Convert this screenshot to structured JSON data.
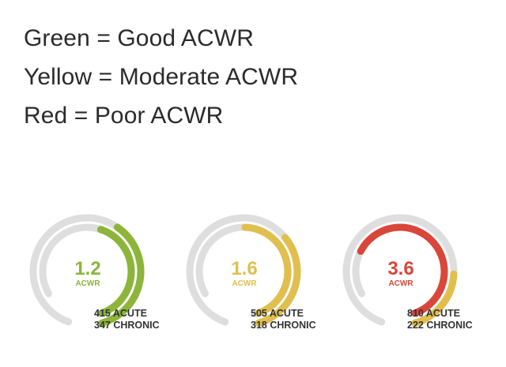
{
  "legend": {
    "lines": [
      "Green = Good ACWR",
      "Yellow = Moderate ACWR",
      "Red = Poor ACWR"
    ]
  },
  "colors": {
    "green": "#8cb53a",
    "yellow": "#e0bf4e",
    "red": "#d9463a",
    "track": "#dedede",
    "text_dark": "#333333"
  },
  "gauges": [
    {
      "value": "1.2",
      "unit": "ACWR",
      "acute": "415 ACUTE",
      "chronic": "347 CHRONIC",
      "status": "good",
      "status_color": "#8cb53a",
      "value_color": "#8cb53a",
      "acute_fraction": 0.45,
      "chronic_fraction": 0.4
    },
    {
      "value": "1.6",
      "unit": "ACWR",
      "acute": "505 ACUTE",
      "chronic": "318 CHRONIC",
      "status": "moderate",
      "status_color": "#e0bf4e",
      "value_color": "#e0bf4e",
      "acute_fraction": 0.5,
      "chronic_fraction": 0.35
    },
    {
      "value": "3.6",
      "unit": "ACWR",
      "acute": "810 ACUTE",
      "chronic": "222 CHRONIC",
      "status": "poor",
      "status_color": "#d9463a",
      "value_color": "#d9463a",
      "acute_fraction": 0.7,
      "chronic_fraction": 0.22
    }
  ]
}
